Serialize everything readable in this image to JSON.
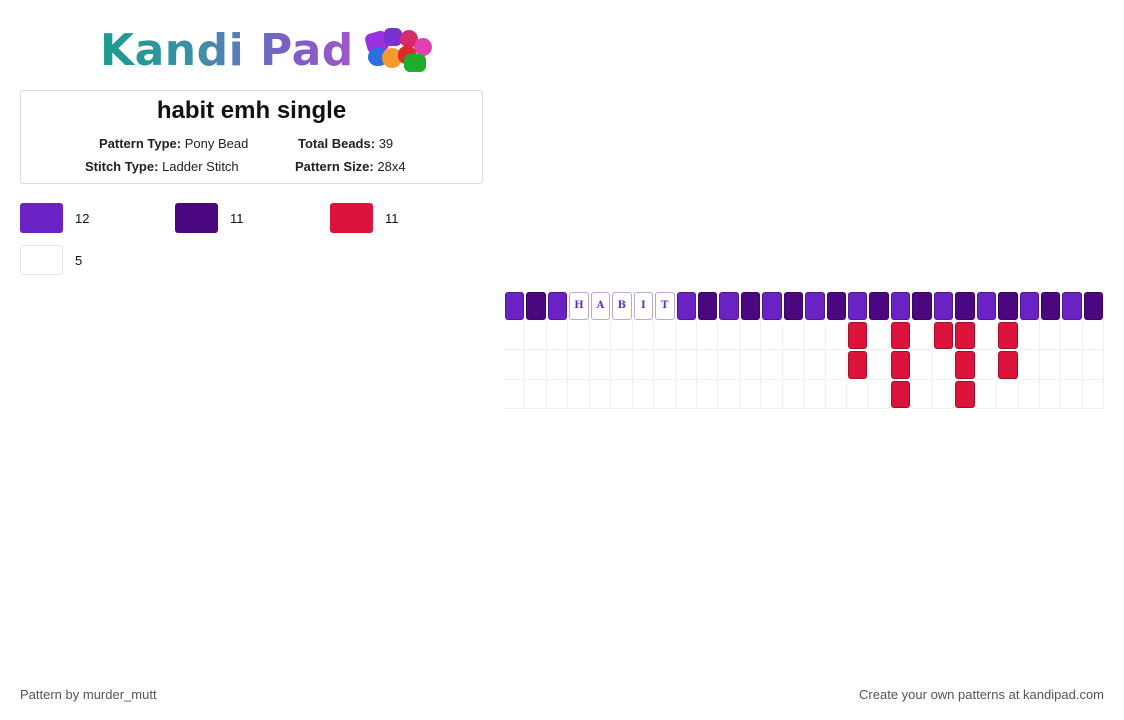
{
  "logo": {
    "text": "Kandi Pad",
    "icon": "bead-pile-icon"
  },
  "pattern": {
    "title": "habit emh single",
    "type_label": "Pattern Type:",
    "type_value": "Pony Bead",
    "total_label": "Total Beads:",
    "total_value": "39",
    "stitch_label": "Stitch Type:",
    "stitch_value": "Ladder Stitch",
    "size_label": "Pattern Size:",
    "size_value": "28x4"
  },
  "colors": {
    "purple": "#6a22c4",
    "dark_purple": "#4b0780",
    "red": "#dc143c",
    "white": "#ffffff"
  },
  "legend": [
    {
      "color": "#6a22c4",
      "count": "12"
    },
    {
      "color": "#4b0780",
      "count": "11"
    },
    {
      "color": "#dc143c",
      "count": "11"
    },
    {
      "color": "#ffffff",
      "count": "5"
    }
  ],
  "bead_grid": {
    "columns": 28,
    "rows": [
      [
        "P",
        "D",
        "P",
        "H",
        "A",
        "B",
        "I",
        "T",
        "P",
        "D",
        "P",
        "D",
        "P",
        "D",
        "P",
        "D",
        "P",
        "D",
        "P",
        "D",
        "P",
        "D",
        "P",
        "D",
        "P",
        "D",
        "P",
        "D"
      ],
      [
        "_",
        "_",
        "_",
        "_",
        "_",
        "_",
        "_",
        "_",
        "_",
        "_",
        "_",
        "_",
        "_",
        "_",
        "_",
        "_",
        "R",
        "_",
        "R",
        "_",
        "R",
        "R",
        "_",
        "R",
        "_",
        "_",
        "_",
        "_"
      ],
      [
        "_",
        "_",
        "_",
        "_",
        "_",
        "_",
        "_",
        "_",
        "_",
        "_",
        "_",
        "_",
        "_",
        "_",
        "_",
        "_",
        "R",
        "_",
        "R",
        "_",
        "_",
        "R",
        "_",
        "R",
        "_",
        "_",
        "_",
        "_"
      ],
      [
        "_",
        "_",
        "_",
        "_",
        "_",
        "_",
        "_",
        "_",
        "_",
        "_",
        "_",
        "_",
        "_",
        "_",
        "_",
        "_",
        "_",
        "_",
        "R",
        "_",
        "_",
        "R",
        "_",
        "_",
        "_",
        "_",
        "_",
        "_"
      ]
    ]
  },
  "footer": {
    "left": "Pattern by murder_mutt",
    "right": "Create your own patterns at kandipad.com"
  }
}
